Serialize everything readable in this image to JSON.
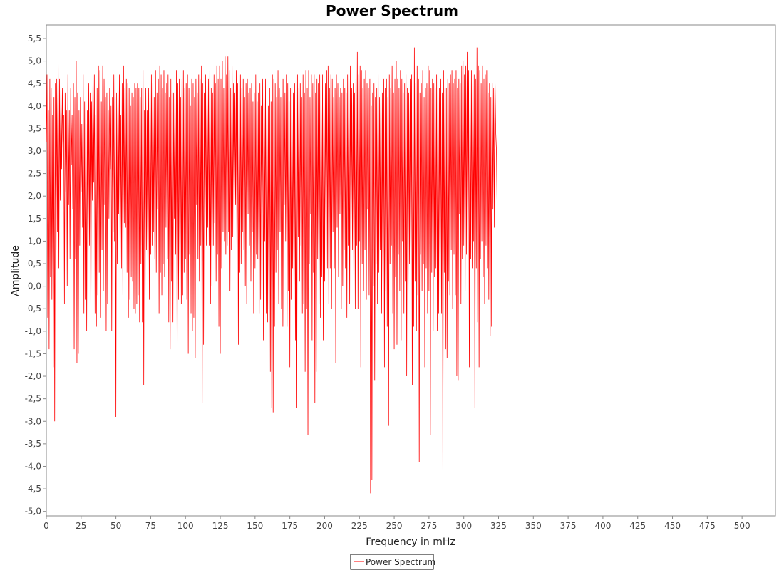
{
  "chart_data": {
    "type": "line",
    "title": "Power Spectrum",
    "xlabel": "Frequency in mHz",
    "ylabel": "Amplitude",
    "xlim": [
      0,
      524
    ],
    "ylim": [
      -5.1,
      5.8
    ],
    "x_ticks": [
      "0",
      "25",
      "50",
      "75",
      "100",
      "125",
      "150",
      "175",
      "200",
      "225",
      "250",
      "275",
      "300",
      "325",
      "350",
      "375",
      "400",
      "425",
      "450",
      "475",
      "500"
    ],
    "y_ticks": [
      "5,5",
      "5,0",
      "4,5",
      "4,0",
      "3,5",
      "3,0",
      "2,5",
      "2,0",
      "1,5",
      "1,0",
      "0,5",
      "0,0",
      "-0,5",
      "-1,0",
      "-1,5",
      "-2,0",
      "-2,5",
      "-3,0",
      "-3,5",
      "-4,0",
      "-4,5",
      "-5,0"
    ],
    "grid": false,
    "legend_position": "bottom-center",
    "series": [
      {
        "name": "Power Spectrum",
        "color": "#ff0000",
        "x_start": 0,
        "x_step": 0.5,
        "values": [
          3.2,
          4.7,
          -0.7,
          3.9,
          -1.4,
          4.6,
          0.2,
          4.4,
          -0.3,
          3.8,
          -1.8,
          4.2,
          -3.0,
          4.5,
          0.8,
          4.6,
          1.2,
          5.0,
          0.4,
          4.6,
          1.9,
          4.2,
          2.6,
          4.4,
          3.0,
          3.8,
          -0.4,
          4.3,
          2.1,
          3.9,
          0.0,
          4.7,
          1.8,
          3.9,
          0.6,
          4.4,
          2.7,
          3.8,
          1.7,
          4.5,
          -1.4,
          4.2,
          0.6,
          5.0,
          -1.7,
          4.3,
          -1.5,
          3.9,
          0.9,
          4.2,
          2.1,
          3.6,
          1.3,
          4.7,
          -0.6,
          4.1,
          -0.3,
          3.6,
          -1.0,
          3.9,
          0.6,
          4.5,
          0.9,
          4.3,
          -0.8,
          4.1,
          1.9,
          4.5,
          2.3,
          4.7,
          -0.6,
          3.8,
          -0.9,
          4.4,
          -0.2,
          4.9,
          0.3,
          4.8,
          -0.7,
          4.1,
          0.8,
          4.9,
          -0.1,
          4.6,
          1.8,
          4.2,
          -1.0,
          4.3,
          -0.4,
          3.9,
          1.5,
          4.4,
          2.6,
          4.0,
          -1.0,
          4.2,
          1.2,
          4.7,
          1.0,
          4.2,
          -2.9,
          4.3,
          0.5,
          4.6,
          1.6,
          4.7,
          0.7,
          3.8,
          0.4,
          4.5,
          -0.2,
          4.9,
          1.4,
          4.4,
          1.3,
          4.6,
          0.3,
          4.5,
          -0.7,
          4.4,
          -0.3,
          4.0,
          0.2,
          4.3,
          0.1,
          4.2,
          -0.5,
          4.5,
          -0.6,
          4.4,
          -0.4,
          4.5,
          -0.2,
          4.4,
          -0.8,
          4.2,
          0.5,
          4.4,
          -0.8,
          4.8,
          -2.2,
          3.9,
          -0.2,
          4.4,
          0.8,
          3.9,
          0.1,
          4.4,
          -0.3,
          4.6,
          0.7,
          4.7,
          0.9,
          4.5,
          1.2,
          4.2,
          0.6,
          4.8,
          0.3,
          4.3,
          1.7,
          4.6,
          -0.6,
          4.9,
          0.3,
          4.7,
          -0.2,
          4.4,
          0.5,
          4.8,
          0.2,
          4.3,
          1.3,
          4.5,
          0.6,
          4.7,
          -0.8,
          4.2,
          -1.4,
          4.6,
          0.1,
          4.3,
          -0.8,
          4.3,
          1.5,
          4.1,
          0.7,
          4.8,
          -1.8,
          4.5,
          -0.3,
          4.6,
          0.1,
          4.2,
          -0.4,
          4.6,
          -0.2,
          4.8,
          0.3,
          4.4,
          0.6,
          4.5,
          -0.3,
          4.7,
          -1.5,
          4.4,
          0.7,
          4.0,
          -0.6,
          4.6,
          -1.0,
          4.5,
          -0.7,
          4.2,
          -1.6,
          4.6,
          1.8,
          4.3,
          0.6,
          4.7,
          0.1,
          4.6,
          0.9,
          4.9,
          -2.6,
          4.5,
          -1.3,
          4.3,
          1.2,
          4.7,
          0.9,
          4.4,
          1.3,
          4.6,
          0.9,
          4.8,
          -0.4,
          4.4,
          0.0,
          4.3,
          0.9,
          4.7,
          1.4,
          4.5,
          0.1,
          4.9,
          0.7,
          4.6,
          -0.9,
          4.9,
          -1.5,
          4.6,
          0.4,
          5.0,
          1.2,
          4.4,
          1.0,
          5.1,
          0.7,
          4.7,
          0.9,
          5.1,
          1.2,
          4.8,
          -0.1,
          4.4,
          0.8,
          4.9,
          1.1,
          4.5,
          1.7,
          4.3,
          1.8,
          4.8,
          0.6,
          4.5,
          -1.3,
          4.2,
          0.3,
          4.7,
          0.5,
          4.4,
          1.2,
          4.6,
          0.8,
          4.2,
          0.0,
          4.5,
          -0.4,
          4.6,
          1.6,
          4.3,
          0.9,
          4.4,
          0.1,
          4.5,
          1.2,
          4.1,
          -0.6,
          4.3,
          0.4,
          4.7,
          0.7,
          4.1,
          0.6,
          4.3,
          -0.6,
          4.5,
          -0.3,
          4.0,
          1.6,
          4.6,
          -1.2,
          4.4,
          1.0,
          4.6,
          -0.6,
          4.2,
          -0.8,
          4.0,
          -0.5,
          4.4,
          -1.9,
          4.1,
          -2.7,
          4.7,
          -2.8,
          4.6,
          -0.9,
          4.5,
          0.3,
          4.2,
          0.8,
          4.8,
          -0.4,
          4.4,
          1.2,
          4.2,
          -0.5,
          4.6,
          -0.9,
          4.6,
          1.8,
          4.3,
          1.0,
          4.7,
          -0.9,
          4.5,
          -0.1,
          4.1,
          -1.8,
          4.4,
          -0.3,
          4.0,
          0.4,
          4.3,
          -0.5,
          4.5,
          -1.2,
          4.2,
          -2.7,
          4.7,
          1.1,
          4.4,
          0.1,
          4.5,
          0.9,
          4.2,
          -0.6,
          4.7,
          -0.4,
          4.3,
          -1.9,
          4.8,
          -0.5,
          4.4,
          -3.3,
          4.8,
          0.5,
          4.2,
          1.6,
          4.7,
          -1.2,
          4.5,
          0.3,
          4.7,
          -2.6,
          4.3,
          -1.9,
          4.6,
          0.6,
          4.5,
          -0.4,
          4.7,
          -0.7,
          4.1,
          0.2,
          4.7,
          -1.2,
          4.5,
          0.1,
          4.5,
          1.4,
          4.8,
          0.4,
          4.9,
          -0.4,
          4.4,
          0.4,
          4.7,
          -0.5,
          4.6,
          1.2,
          4.2,
          0.4,
          4.4,
          -1.7,
          4.7,
          1.3,
          4.5,
          0.2,
          4.2,
          1.6,
          4.4,
          -0.5,
          4.3,
          0.0,
          4.6,
          0.8,
          4.4,
          0.4,
          4.3,
          -0.7,
          4.7,
          0.9,
          4.6,
          -0.4,
          4.9,
          1.3,
          4.4,
          0.8,
          4.5,
          -0.1,
          4.3,
          -0.5,
          4.6,
          0.9,
          5.2,
          -0.5,
          4.7,
          1.0,
          4.9,
          -1.8,
          4.8,
          0.5,
          4.4,
          -0.1,
          4.6,
          0.8,
          4.8,
          -0.3,
          4.5,
          1.7,
          4.4,
          -0.2,
          4.6,
          -4.6,
          4.0,
          -4.3,
          4.3,
          0.0,
          4.5,
          -2.1,
          4.2,
          0.5,
          4.4,
          -0.4,
          4.7,
          0.3,
          4.2,
          0.8,
          4.8,
          -0.6,
          4.3,
          -0.2,
          4.6,
          -1.8,
          4.4,
          -0.1,
          4.6,
          -0.9,
          4.2,
          -3.1,
          4.7,
          0.5,
          4.4,
          0.9,
          4.9,
          -0.6,
          4.3,
          -1.4,
          4.6,
          0.2,
          5.0,
          -1.3,
          4.6,
          0.7,
          4.4,
          -0.1,
          4.8,
          -1.2,
          4.6,
          1.0,
          4.3,
          -0.6,
          4.5,
          0.1,
          4.7,
          -2.0,
          4.4,
          -0.2,
          4.3,
          0.5,
          4.6,
          0.4,
          4.7,
          -2.2,
          4.4,
          -0.9,
          5.3,
          0.1,
          4.5,
          -1.0,
          4.9,
          -0.2,
          4.6,
          -3.9,
          4.3,
          0.7,
          4.5,
          -0.1,
          4.8,
          0.5,
          4.2,
          -1.8,
          4.4,
          0.4,
          4.5,
          -0.6,
          4.9,
          -0.1,
          4.8,
          -3.3,
          4.4,
          0.3,
          4.6,
          -1.0,
          4.5,
          0.2,
          4.4,
          0.4,
          4.7,
          -1.0,
          4.5,
          -0.6,
          4.4,
          0.2,
          4.6,
          -0.6,
          4.3,
          -4.1,
          4.8,
          0.3,
          4.4,
          -1.4,
          4.4,
          -1.6,
          4.6,
          0.1,
          4.5,
          -0.2,
          4.7,
          0.8,
          4.8,
          -0.5,
          4.5,
          0.7,
          4.6,
          -0.2,
          4.8,
          -2.0,
          4.4,
          -2.1,
          4.6,
          1.6,
          4.5,
          -0.4,
          4.9,
          0.6,
          5.0,
          0.9,
          4.7,
          -0.1,
          4.9,
          0.7,
          5.2,
          1.1,
          4.8,
          -1.8,
          4.5,
          0.6,
          4.8,
          0.4,
          4.5,
          1.0,
          4.7,
          -2.7,
          4.6,
          0.4,
          5.3,
          -0.8,
          4.9,
          -1.8,
          4.8,
          0.6,
          4.5,
          1.0,
          4.9,
          0.2,
          4.6,
          -0.4,
          4.7,
          0.9,
          4.8,
          0.4,
          4.3,
          -0.3,
          4.5,
          -1.1,
          4.2,
          -0.9,
          4.5,
          1.7,
          4.4,
          1.3,
          4.5,
          3.4,
          3.0,
          1.7
        ]
      }
    ]
  }
}
